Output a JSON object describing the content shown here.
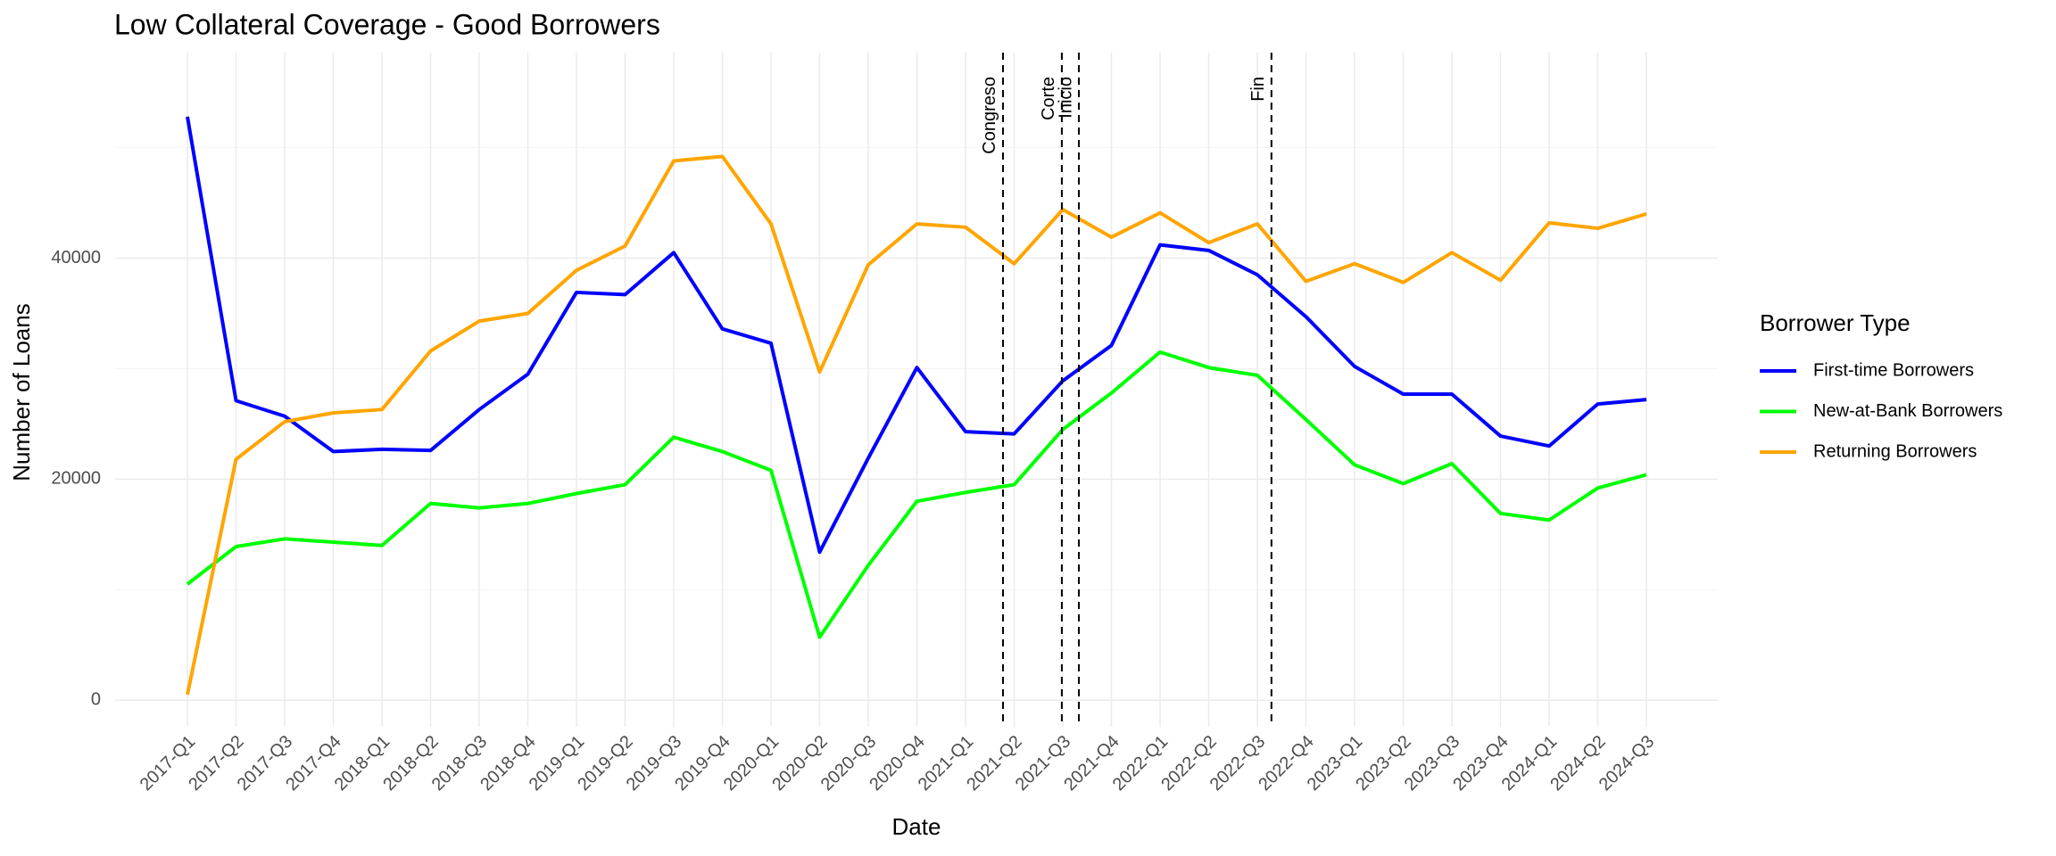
{
  "chart_data": {
    "type": "line",
    "title": "Low Collateral Coverage - Good Borrowers",
    "x_label": "Date",
    "y_label": "Number of Loans",
    "legend_title": "Borrower Type",
    "legend_position": "right",
    "grid": true,
    "categories": [
      "2017-Q1",
      "2017-Q2",
      "2017-Q3",
      "2017-Q4",
      "2018-Q1",
      "2018-Q2",
      "2018-Q3",
      "2018-Q4",
      "2019-Q1",
      "2019-Q2",
      "2019-Q3",
      "2019-Q4",
      "2020-Q1",
      "2020-Q2",
      "2020-Q3",
      "2020-Q4",
      "2021-Q1",
      "2021-Q2",
      "2021-Q3",
      "2021-Q4",
      "2022-Q1",
      "2022-Q2",
      "2022-Q3",
      "2022-Q4",
      "2023-Q1",
      "2023-Q2",
      "2023-Q3",
      "2023-Q4",
      "2024-Q1",
      "2024-Q2",
      "2024-Q3"
    ],
    "series": [
      {
        "name": "First-time Borrowers",
        "color": "#0000ff",
        "values": [
          52800,
          27100,
          25700,
          22500,
          22700,
          22600,
          26300,
          29500,
          36900,
          36700,
          40500,
          33600,
          32300,
          13400,
          21900,
          30100,
          24300,
          24100,
          28900,
          32100,
          41200,
          40700,
          38500,
          34700,
          30200,
          27700,
          27700,
          23900,
          23000,
          26800,
          27200
        ]
      },
      {
        "name": "New-at-Bank Borrowers",
        "color": "#00ff00",
        "values": [
          10500,
          13900,
          14600,
          14300,
          14000,
          17800,
          17400,
          17800,
          18700,
          19500,
          23800,
          22500,
          20800,
          5700,
          12200,
          18000,
          18800,
          19500,
          24500,
          27800,
          31500,
          30100,
          29400,
          25400,
          21300,
          19600,
          21400,
          16900,
          16300,
          19200,
          20400
        ]
      },
      {
        "name": "Returning Borrowers",
        "color": "#ffa500",
        "values": [
          500,
          21800,
          25200,
          26000,
          26300,
          31600,
          34300,
          35000,
          38900,
          41100,
          48800,
          49200,
          43100,
          29700,
          39400,
          43100,
          42800,
          39500,
          44400,
          41900,
          44100,
          41400,
          43100,
          37900,
          39500,
          37800,
          40500,
          38000,
          43200,
          42700,
          44000
        ]
      }
    ],
    "vlines": [
      {
        "label": "Congreso",
        "x": 16.77
      },
      {
        "label": "Corte",
        "x": 17.98
      },
      {
        "label": "Inicio",
        "x": 18.33
      },
      {
        "label": "Fin",
        "x": 22.29
      }
    ],
    "ylim": [
      -2400,
      58600
    ],
    "yticks": [
      0,
      20000,
      40000
    ]
  }
}
